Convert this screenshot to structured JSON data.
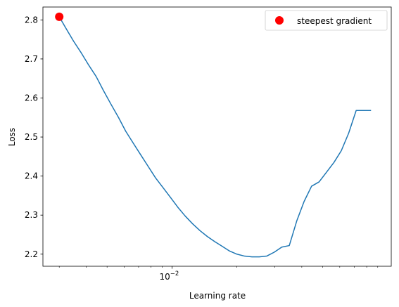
{
  "chart_data": {
    "type": "line",
    "xlabel": "Learning rate",
    "ylabel": "Loss",
    "x_scale": "log",
    "xlim": [
      0.00252,
      0.104
    ],
    "ylim": [
      2.169,
      2.833
    ],
    "x_ticks": [
      {
        "value": 0.01,
        "base": "10",
        "exponent": "−2"
      }
    ],
    "y_ticks": [
      {
        "value": 2.2,
        "label": "2.2"
      },
      {
        "value": 2.3,
        "label": "2.3"
      },
      {
        "value": 2.4,
        "label": "2.4"
      },
      {
        "value": 2.5,
        "label": "2.5"
      },
      {
        "value": 2.6,
        "label": "2.6"
      },
      {
        "value": 2.7,
        "label": "2.7"
      },
      {
        "value": 2.8,
        "label": "2.8"
      }
    ],
    "grid": false,
    "legend_position": "top-right",
    "series": [
      {
        "color": "#1f77b4",
        "x": [
          0.003,
          0.00325,
          0.0035,
          0.0038,
          0.0041,
          0.00445,
          0.0048,
          0.0052,
          0.00565,
          0.0061,
          0.0066,
          0.00715,
          0.00775,
          0.0084,
          0.0091,
          0.00985,
          0.01065,
          0.0115,
          0.01245,
          0.0135,
          0.0146,
          0.0158,
          0.0171,
          0.0185,
          0.02,
          0.0217,
          0.0235,
          0.0254,
          0.0275,
          0.0298,
          0.0323,
          0.035,
          0.0379,
          0.041,
          0.0444,
          0.0481,
          0.0521,
          0.0564,
          0.061,
          0.066,
          0.0715,
          0.0774,
          0.0838
        ],
        "y": [
          2.808,
          2.775,
          2.745,
          2.715,
          2.685,
          2.655,
          2.62,
          2.585,
          2.55,
          2.515,
          2.485,
          2.455,
          2.425,
          2.395,
          2.37,
          2.345,
          2.32,
          2.298,
          2.278,
          2.26,
          2.245,
          2.232,
          2.22,
          2.208,
          2.2,
          2.195,
          2.193,
          2.193,
          2.195,
          2.205,
          2.218,
          2.222,
          2.285,
          2.335,
          2.374,
          2.385,
          2.41,
          2.435,
          2.465,
          2.51,
          2.568,
          2.568,
          2.568
        ]
      }
    ],
    "markers": [
      {
        "legend_label": "steepest gradient",
        "x": 0.003,
        "y": 2.808,
        "color": "#ff0000"
      }
    ]
  }
}
